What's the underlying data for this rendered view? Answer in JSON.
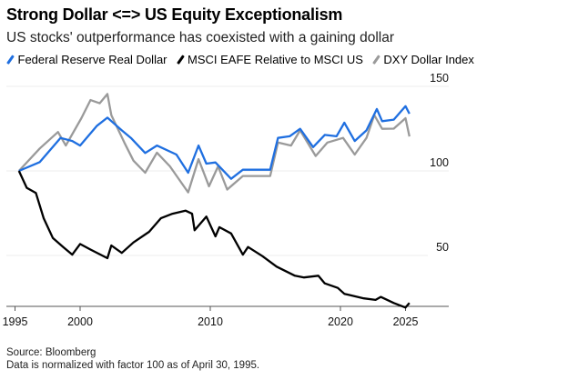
{
  "chart_data": {
    "type": "line",
    "title": "Strong Dollar <=> US Equity Exceptionalism",
    "subtitle": "US stocks' outperformance has coexisted with a gaining dollar",
    "xlabel": "",
    "ylabel": "",
    "xlim": [
      1995,
      2026.5
    ],
    "ylim": [
      20,
      155
    ],
    "x_ticks": [
      "1995",
      "2000",
      "2010",
      "2020",
      "2025"
    ],
    "x_tick_values": [
      1995,
      2000,
      2010,
      2020,
      2025
    ],
    "y_ticks": [
      "50",
      "100",
      "150"
    ],
    "y_tick_values": [
      50,
      100,
      150
    ],
    "grid": true,
    "legend_position": "top-left",
    "series": [
      {
        "name": "Federal Reserve Real Dollar",
        "color": "#1f6fe0",
        "x": [
          1995.3,
          1996.9,
          1998.5,
          1999.4,
          2000.0,
          2001.3,
          2002.1,
          2003.2,
          2003.9,
          2005.0,
          2005.9,
          2007.4,
          2008.3,
          2009.1,
          2009.7,
          2010.4,
          2011.6,
          2012.5,
          2013.7,
          2014.6,
          2015.2,
          2016.1,
          2016.9,
          2017.9,
          2018.8,
          2019.7,
          2020.3,
          2021.1,
          2022.0,
          2022.8,
          2023.2,
          2024.1,
          2025.0,
          2025.3
        ],
        "values": [
          100,
          105.2,
          119.5,
          117.7,
          115,
          126.7,
          131.5,
          124,
          119.5,
          110.6,
          115,
          109.7,
          98.9,
          115,
          104.3,
          105,
          95.3,
          100.7,
          100.7,
          100.7,
          119.5,
          120.5,
          124.9,
          114.1,
          121.3,
          120.5,
          128.5,
          117.7,
          124,
          136.6,
          129.4,
          130.3,
          138.3,
          133.8
        ]
      },
      {
        "name": "MSCI EAFE Relative to MSCI US",
        "color": "#000000",
        "x": [
          1995.3,
          1995.9,
          1996.6,
          1997.2,
          1997.9,
          1998.7,
          1999.4,
          2000.0,
          2000.8,
          2002.1,
          2002.4,
          2003.2,
          2004.1,
          2005.3,
          2006.2,
          2007.1,
          2008.1,
          2008.6,
          2008.8,
          2009.7,
          2010.4,
          2010.7,
          2011.6,
          2012.5,
          2012.9,
          2014.0,
          2015.1,
          2016.5,
          2017.2,
          2018.3,
          2018.8,
          2019.8,
          2020.3,
          2021.8,
          2022.7,
          2023.1,
          2024.1,
          2025.0,
          2025.3
        ],
        "values": [
          100,
          90,
          87,
          72,
          60.4,
          55,
          50.5,
          56.8,
          53.5,
          48.4,
          55.9,
          51.5,
          57.7,
          64,
          72,
          74.7,
          76.5,
          74.7,
          64.9,
          73,
          61.3,
          66.7,
          63,
          50.5,
          55,
          49.6,
          43.4,
          38,
          37,
          38,
          33.5,
          30.8,
          27.3,
          24.6,
          23.7,
          25.5,
          21.9,
          19.2,
          21.9
        ]
      },
      {
        "name": "DXY Dollar Index",
        "color": "#9a9a9a",
        "x": [
          1995.3,
          1996.9,
          1998.3,
          1998.9,
          2000.1,
          2000.8,
          2001.5,
          2002.1,
          2002.4,
          2003.4,
          2004.1,
          2005.0,
          2005.9,
          2006.9,
          2008.3,
          2009.1,
          2009.9,
          2010.6,
          2011.3,
          2012.5,
          2013.9,
          2014.6,
          2015.2,
          2016.2,
          2016.9,
          2018.1,
          2019.0,
          2020.2,
          2021.1,
          2022.0,
          2022.6,
          2023.2,
          2024.1,
          2025.0,
          2025.3
        ],
        "values": [
          100,
          113.3,
          123,
          115,
          131.2,
          141.9,
          140,
          145.5,
          133,
          116.8,
          106.1,
          98.9,
          110.8,
          102.7,
          87.3,
          107,
          90.9,
          102.7,
          89,
          97,
          97,
          97,
          116.8,
          115,
          124,
          108.8,
          116.8,
          119.5,
          109.7,
          119.5,
          133,
          124.9,
          125,
          131.2,
          120.4
        ]
      }
    ]
  },
  "footer": {
    "source": "Source: Bloomberg",
    "note": "Data is normalized with factor 100 as of April 30, 1995."
  }
}
